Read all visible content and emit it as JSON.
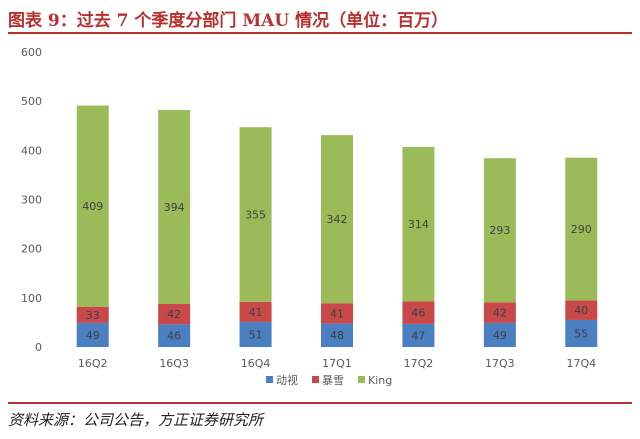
{
  "header": {
    "title": "图表 9：过去 7 个季度分部门 MAU 情况（单位：百万）"
  },
  "footer": {
    "source": "资料来源：公司公告，方正证券研究所"
  },
  "colors": {
    "title": "#b8312f",
    "动视": "#4a7fc1",
    "暴雪": "#c9494b",
    "King": "#9bbb59"
  },
  "chart_data": {
    "type": "bar",
    "stacked": true,
    "title": "",
    "xlabel": "",
    "ylabel": "",
    "categories": [
      "16Q2",
      "16Q3",
      "16Q4",
      "17Q1",
      "17Q2",
      "17Q3",
      "17Q4"
    ],
    "series": [
      {
        "name": "动视",
        "color": "#4a7fc1",
        "values": [
          49,
          46,
          51,
          48,
          47,
          49,
          55
        ]
      },
      {
        "name": "暴雪",
        "color": "#c9494b",
        "values": [
          33,
          42,
          41,
          41,
          46,
          42,
          40
        ]
      },
      {
        "name": "King",
        "color": "#9bbb59",
        "values": [
          409,
          394,
          355,
          342,
          314,
          293,
          290
        ]
      }
    ],
    "ylim": [
      0,
      600
    ],
    "yticks": [
      0,
      100,
      200,
      300,
      400,
      500,
      600
    ],
    "grid": false,
    "legend": "bottom-center",
    "data_labels": true
  }
}
